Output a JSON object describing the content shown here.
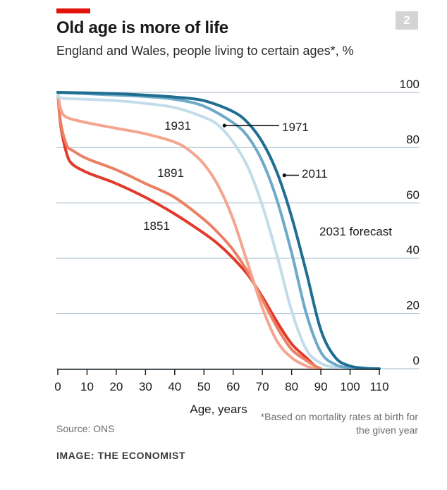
{
  "header": {
    "chart_number": "2",
    "title": "Old age is more of life",
    "subtitle": "England and Wales, people living to certain ages*, %"
  },
  "footer": {
    "source": "Source: ONS",
    "footnote": "*Based on mortality rates at birth for the given year",
    "credit": "IMAGE: THE ECONOMIST"
  },
  "colors": {
    "grid": "#b9c8d4",
    "axis": "#222222",
    "label": "#1a1a1a"
  },
  "chart_data": {
    "type": "line",
    "title": "Old age is more of life",
    "subtitle": "England and Wales, people living to certain ages*, %",
    "xlabel": "Age, years",
    "ylabel": "",
    "xlim": [
      0,
      110
    ],
    "ylim": [
      0,
      100
    ],
    "x_ticks": [
      0,
      10,
      20,
      30,
      40,
      50,
      60,
      70,
      80,
      90,
      100,
      110
    ],
    "y_ticks": [
      0,
      20,
      40,
      60,
      80,
      100
    ],
    "grid": true,
    "y_axis_side": "right",
    "series": [
      {
        "name": "1851",
        "color": "#e13a2a",
        "points": [
          [
            0,
            100
          ],
          [
            1,
            88
          ],
          [
            3,
            78
          ],
          [
            5,
            74
          ],
          [
            10,
            71
          ],
          [
            15,
            69
          ],
          [
            20,
            67
          ],
          [
            30,
            62
          ],
          [
            40,
            56
          ],
          [
            50,
            49
          ],
          [
            55,
            45
          ],
          [
            60,
            40
          ],
          [
            65,
            34
          ],
          [
            70,
            26
          ],
          [
            75,
            17
          ],
          [
            80,
            9
          ],
          [
            85,
            4
          ],
          [
            88,
            1
          ],
          [
            90,
            0
          ]
        ]
      },
      {
        "name": "1891",
        "color": "#ec8064",
        "points": [
          [
            0,
            100
          ],
          [
            1,
            89
          ],
          [
            3,
            81
          ],
          [
            5,
            79
          ],
          [
            10,
            76
          ],
          [
            20,
            72
          ],
          [
            30,
            67
          ],
          [
            40,
            62
          ],
          [
            50,
            54
          ],
          [
            55,
            49
          ],
          [
            60,
            43
          ],
          [
            65,
            35
          ],
          [
            70,
            25
          ],
          [
            75,
            15
          ],
          [
            80,
            7
          ],
          [
            85,
            3
          ],
          [
            88,
            1
          ],
          [
            90,
            0
          ]
        ]
      },
      {
        "name": "1931",
        "color": "#f4a58f",
        "points": [
          [
            0,
            100
          ],
          [
            1,
            94
          ],
          [
            3,
            91
          ],
          [
            10,
            89
          ],
          [
            20,
            87
          ],
          [
            30,
            85
          ],
          [
            40,
            82
          ],
          [
            45,
            79
          ],
          [
            50,
            74
          ],
          [
            55,
            66
          ],
          [
            60,
            54
          ],
          [
            65,
            38
          ],
          [
            70,
            22
          ],
          [
            75,
            10
          ],
          [
            80,
            4
          ],
          [
            85,
            1
          ],
          [
            88,
            0
          ]
        ]
      },
      {
        "name": "1971",
        "color": "#c2dcea",
        "points": [
          [
            0,
            100
          ],
          [
            1,
            98
          ],
          [
            10,
            97.5
          ],
          [
            20,
            97
          ],
          [
            30,
            96
          ],
          [
            40,
            94.5
          ],
          [
            50,
            91
          ],
          [
            55,
            88
          ],
          [
            60,
            82
          ],
          [
            65,
            73
          ],
          [
            70,
            59
          ],
          [
            75,
            41
          ],
          [
            80,
            21
          ],
          [
            85,
            7
          ],
          [
            90,
            2
          ],
          [
            95,
            0.5
          ],
          [
            100,
            0
          ]
        ]
      },
      {
        "name": "2011",
        "color": "#6fa9c9",
        "points": [
          [
            0,
            100
          ],
          [
            10,
            99.5
          ],
          [
            20,
            99
          ],
          [
            30,
            98.5
          ],
          [
            40,
            97.5
          ],
          [
            50,
            95
          ],
          [
            60,
            89
          ],
          [
            65,
            84
          ],
          [
            70,
            75
          ],
          [
            75,
            61
          ],
          [
            80,
            42
          ],
          [
            85,
            20
          ],
          [
            90,
            6
          ],
          [
            95,
            1.5
          ],
          [
            100,
            0.3
          ],
          [
            105,
            0
          ]
        ]
      },
      {
        "name": "2031 forecast",
        "color": "#1f6e91",
        "points": [
          [
            0,
            100
          ],
          [
            10,
            99.8
          ],
          [
            20,
            99.5
          ],
          [
            30,
            99
          ],
          [
            40,
            98.3
          ],
          [
            50,
            97
          ],
          [
            60,
            93
          ],
          [
            65,
            89
          ],
          [
            70,
            82
          ],
          [
            75,
            71
          ],
          [
            80,
            55
          ],
          [
            85,
            35
          ],
          [
            90,
            14
          ],
          [
            95,
            4
          ],
          [
            100,
            1
          ],
          [
            105,
            0.2
          ],
          [
            110,
            0
          ]
        ]
      }
    ],
    "annotations": [
      {
        "text": "1851"
      },
      {
        "text": "1891"
      },
      {
        "text": "1931"
      },
      {
        "text": "1971"
      },
      {
        "text": "2011"
      },
      {
        "text": "2031 forecast"
      }
    ]
  }
}
